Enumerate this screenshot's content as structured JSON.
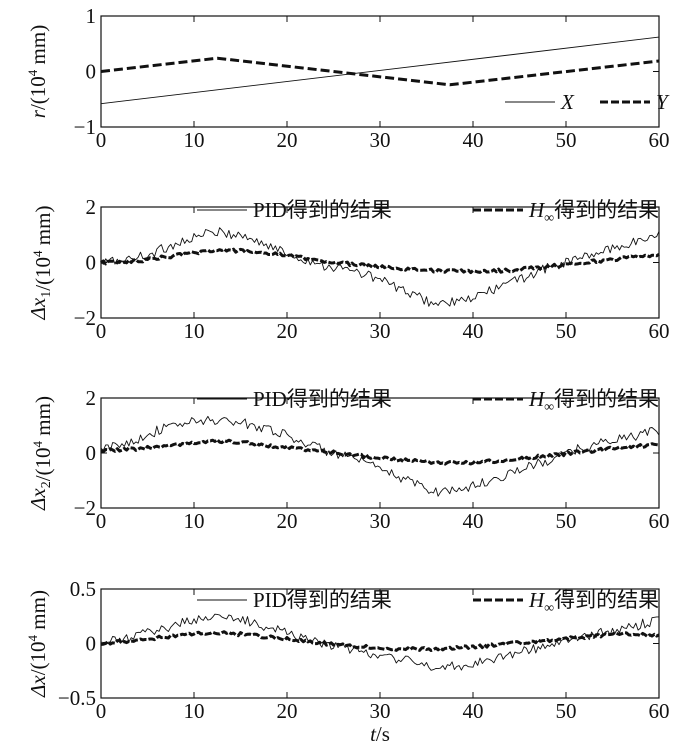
{
  "chart_data": [
    {
      "type": "line",
      "ylabel_var": "r",
      "ylabel_unit": "/(10",
      "ylabel_exp": "4",
      "ylabel_unit2": " mm)",
      "xlim": [
        0,
        60
      ],
      "ylim": [
        -1,
        1
      ],
      "xticks": [
        0,
        10,
        20,
        30,
        40,
        50,
        60
      ],
      "yticks": [
        -1,
        0,
        1
      ],
      "ytick_labels": [
        "−1",
        "0",
        "1"
      ],
      "legend": "bottom-right",
      "series": [
        {
          "name": "X",
          "style": "thin",
          "color": "#111111",
          "x": [
            0,
            60
          ],
          "y": [
            -0.58,
            0.62
          ]
        },
        {
          "name": "Y",
          "style": "thick-dashed",
          "color": "#111111",
          "x": [
            0,
            12.5,
            37.5,
            60
          ],
          "y": [
            0.0,
            0.24,
            -0.24,
            0.19
          ]
        }
      ]
    },
    {
      "type": "line",
      "ylabel_var": "Δx",
      "ylabel_sub": "1",
      "ylabel_unit": "/(10",
      "ylabel_exp": "4",
      "ylabel_unit2": " mm)",
      "xlim": [
        0,
        60
      ],
      "ylim": [
        -2,
        2
      ],
      "xticks": [
        0,
        10,
        20,
        30,
        40,
        50,
        60
      ],
      "yticks": [
        -2,
        0,
        2
      ],
      "ytick_labels": [
        "−2",
        "0",
        "2"
      ],
      "legend": "top",
      "series": [
        {
          "name": "PID得到的结果",
          "style": "thin",
          "color": "#111111",
          "x": [
            0,
            3,
            6,
            9,
            12,
            15,
            18,
            21,
            24,
            27,
            30,
            33,
            36,
            39,
            42,
            45,
            48,
            51,
            54,
            57,
            60
          ],
          "y": [
            0.0,
            0.1,
            0.4,
            0.8,
            1.1,
            1.0,
            0.6,
            0.2,
            -0.1,
            -0.3,
            -0.6,
            -1.1,
            -1.5,
            -1.4,
            -1.0,
            -0.6,
            -0.2,
            0.1,
            0.4,
            0.7,
            1.0
          ]
        },
        {
          "name": "H∞得到的结果",
          "style": "thick-dashed",
          "color": "#111111",
          "x": [
            0,
            4,
            8,
            12,
            16,
            20,
            24,
            28,
            32,
            36,
            40,
            44,
            48,
            52,
            56,
            60
          ],
          "y": [
            0.0,
            0.05,
            0.25,
            0.45,
            0.4,
            0.25,
            0.05,
            -0.1,
            -0.2,
            -0.3,
            -0.32,
            -0.28,
            -0.15,
            0.0,
            0.15,
            0.3
          ]
        }
      ]
    },
    {
      "type": "line",
      "ylabel_var": "Δx",
      "ylabel_sub": "2",
      "ylabel_unit": "/(10",
      "ylabel_exp": "4",
      "ylabel_unit2": " mm)",
      "xlim": [
        0,
        60
      ],
      "ylim": [
        -2,
        2
      ],
      "xticks": [
        0,
        10,
        20,
        30,
        40,
        50,
        60
      ],
      "yticks": [
        -2,
        0,
        2
      ],
      "ytick_labels": [
        "−2",
        "0",
        "2"
      ],
      "legend": "top",
      "series": [
        {
          "name": "PID得到的结果",
          "style": "thin",
          "color": "#111111",
          "x": [
            0,
            3,
            6,
            9,
            12,
            15,
            18,
            21,
            24,
            27,
            30,
            33,
            36,
            39,
            42,
            45,
            48,
            51,
            54,
            57,
            60
          ],
          "y": [
            0.1,
            0.4,
            0.8,
            1.1,
            1.2,
            1.1,
            0.9,
            0.5,
            0.1,
            -0.2,
            -0.6,
            -1.0,
            -1.4,
            -1.3,
            -1.0,
            -0.6,
            -0.3,
            0.1,
            0.4,
            0.6,
            0.8
          ]
        },
        {
          "name": "H∞得到的结果",
          "style": "thick-dashed",
          "color": "#111111",
          "x": [
            0,
            4,
            8,
            12,
            16,
            20,
            24,
            28,
            32,
            36,
            40,
            44,
            48,
            52,
            56,
            60
          ],
          "y": [
            0.1,
            0.15,
            0.3,
            0.45,
            0.35,
            0.2,
            0.05,
            -0.1,
            -0.25,
            -0.35,
            -0.35,
            -0.25,
            -0.1,
            0.05,
            0.2,
            0.3
          ]
        }
      ]
    },
    {
      "type": "line",
      "ylabel_var": "Δx",
      "ylabel_unit": "/(10",
      "ylabel_exp": "4",
      "ylabel_unit2": " mm)",
      "xlabel_var": "t",
      "xlabel_unit": "/s",
      "xlim": [
        0,
        60
      ],
      "ylim": [
        -0.5,
        0.5
      ],
      "xticks": [
        0,
        10,
        20,
        30,
        40,
        50,
        60
      ],
      "yticks": [
        -0.5,
        0,
        0.5
      ],
      "ytick_labels": [
        "−0.5",
        "0",
        "0.5"
      ],
      "legend": "top",
      "series": [
        {
          "name": "PID得到的结果",
          "style": "thin",
          "color": "#111111",
          "x": [
            0,
            3,
            6,
            9,
            12,
            15,
            18,
            21,
            24,
            27,
            30,
            33,
            36,
            39,
            42,
            45,
            48,
            51,
            54,
            57,
            60
          ],
          "y": [
            0.0,
            0.05,
            0.12,
            0.2,
            0.25,
            0.22,
            0.15,
            0.08,
            0.0,
            -0.06,
            -0.1,
            -0.16,
            -0.22,
            -0.2,
            -0.14,
            -0.08,
            -0.02,
            0.04,
            0.1,
            0.15,
            0.22
          ]
        },
        {
          "name": "H∞得到的结果",
          "style": "thick-dashed",
          "color": "#111111",
          "x": [
            0,
            4,
            8,
            12,
            16,
            20,
            24,
            28,
            32,
            36,
            40,
            44,
            48,
            52,
            56,
            60
          ],
          "y": [
            0.0,
            0.03,
            0.07,
            0.1,
            0.08,
            0.04,
            0.0,
            -0.03,
            -0.05,
            -0.05,
            -0.03,
            0.0,
            0.03,
            0.06,
            0.09,
            0.07
          ]
        }
      ]
    }
  ]
}
